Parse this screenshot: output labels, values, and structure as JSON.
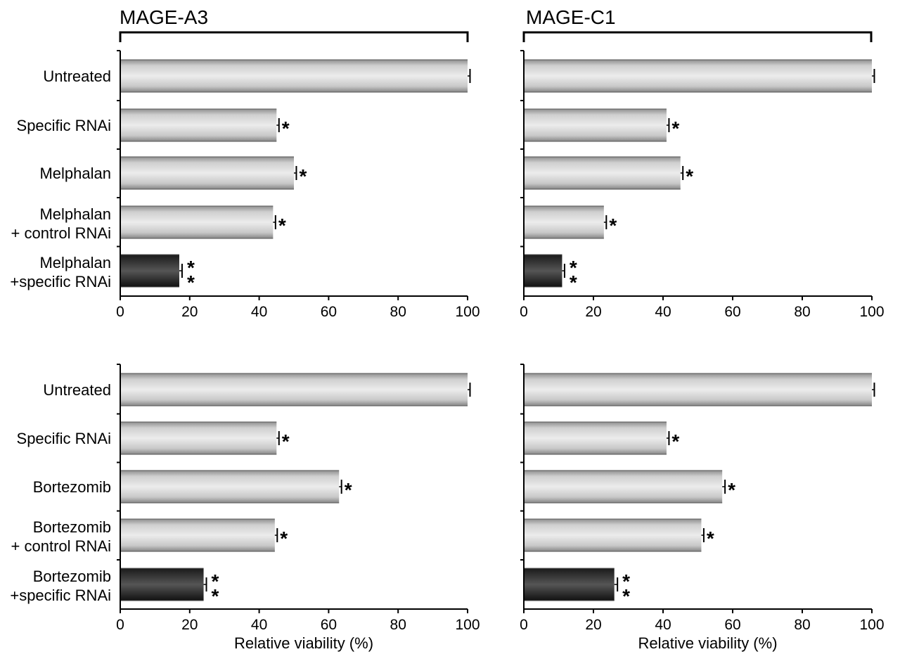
{
  "headers": [
    {
      "title": "MAGE-A3"
    },
    {
      "title": "MAGE-C1"
    }
  ],
  "colors": {
    "control_bar": "#c4c4c4",
    "combo_bar": "#3a3a3a"
  },
  "chart_data": [
    {
      "type": "bar",
      "orientation": "horizontal",
      "panel": "MAGE-A3 / Melphalan",
      "categories": [
        "Untreated",
        "Specific RNAi",
        "Melphalan",
        "Melphalan\n+ control RNAi",
        "Melphalan\n+specific RNAi"
      ],
      "values": [
        100,
        45,
        50,
        44,
        17
      ],
      "errors": [
        0.5,
        0.5,
        0.5,
        0.5,
        0.6
      ],
      "significance": [
        "",
        "*",
        "*",
        "*",
        "**"
      ],
      "highlight": [
        false,
        false,
        false,
        false,
        true
      ],
      "xlim": [
        0,
        100
      ],
      "xticks": [
        "0",
        "20",
        "40",
        "60",
        "80",
        "100"
      ],
      "xlabel": ""
    },
    {
      "type": "bar",
      "orientation": "horizontal",
      "panel": "MAGE-C1 / Melphalan",
      "categories": [
        "Untreated",
        "Specific RNAi",
        "Melphalan",
        "Melphalan\n+ control RNAi",
        "Melphalan\n+specific RNAi"
      ],
      "values": [
        100,
        41,
        45,
        23,
        11
      ],
      "errors": [
        0.5,
        0.5,
        0.5,
        0.5,
        0.5
      ],
      "significance": [
        "",
        "*",
        "*",
        "*",
        "**"
      ],
      "highlight": [
        false,
        false,
        false,
        false,
        true
      ],
      "xlim": [
        0,
        100
      ],
      "xticks": [
        "0",
        "20",
        "40",
        "60",
        "80",
        "100"
      ],
      "xlabel": ""
    },
    {
      "type": "bar",
      "orientation": "horizontal",
      "panel": "MAGE-A3 / Bortezomib",
      "categories": [
        "Untreated",
        "Specific RNAi",
        "Bortezomib",
        "Bortezomib\n+ control RNAi",
        "Bortezomib\n+specific RNAi"
      ],
      "values": [
        100,
        45,
        63,
        44.5,
        24
      ],
      "errors": [
        0.5,
        0.5,
        0.5,
        0.5,
        0.6
      ],
      "significance": [
        "",
        "*",
        "*",
        "*",
        "**"
      ],
      "highlight": [
        false,
        false,
        false,
        false,
        true
      ],
      "xlim": [
        0,
        100
      ],
      "xticks": [
        "0",
        "20",
        "40",
        "60",
        "80",
        "100"
      ],
      "xlabel": "Relative viability (%)"
    },
    {
      "type": "bar",
      "orientation": "horizontal",
      "panel": "MAGE-C1 / Bortezomib",
      "categories": [
        "Untreated",
        "Specific RNAi",
        "Bortezomib",
        "Bortezomib\n+ control RNAi",
        "Bortezomib\n+specific RNAi"
      ],
      "values": [
        100,
        41,
        57,
        51,
        26
      ],
      "errors": [
        0.5,
        0.5,
        0.6,
        0.5,
        0.7
      ],
      "significance": [
        "",
        "*",
        "*",
        "*",
        "**"
      ],
      "highlight": [
        false,
        false,
        false,
        false,
        true
      ],
      "xlim": [
        0,
        100
      ],
      "xticks": [
        "0",
        "20",
        "40",
        "60",
        "80",
        "100"
      ],
      "xlabel": "Relative viability (%)"
    }
  ]
}
